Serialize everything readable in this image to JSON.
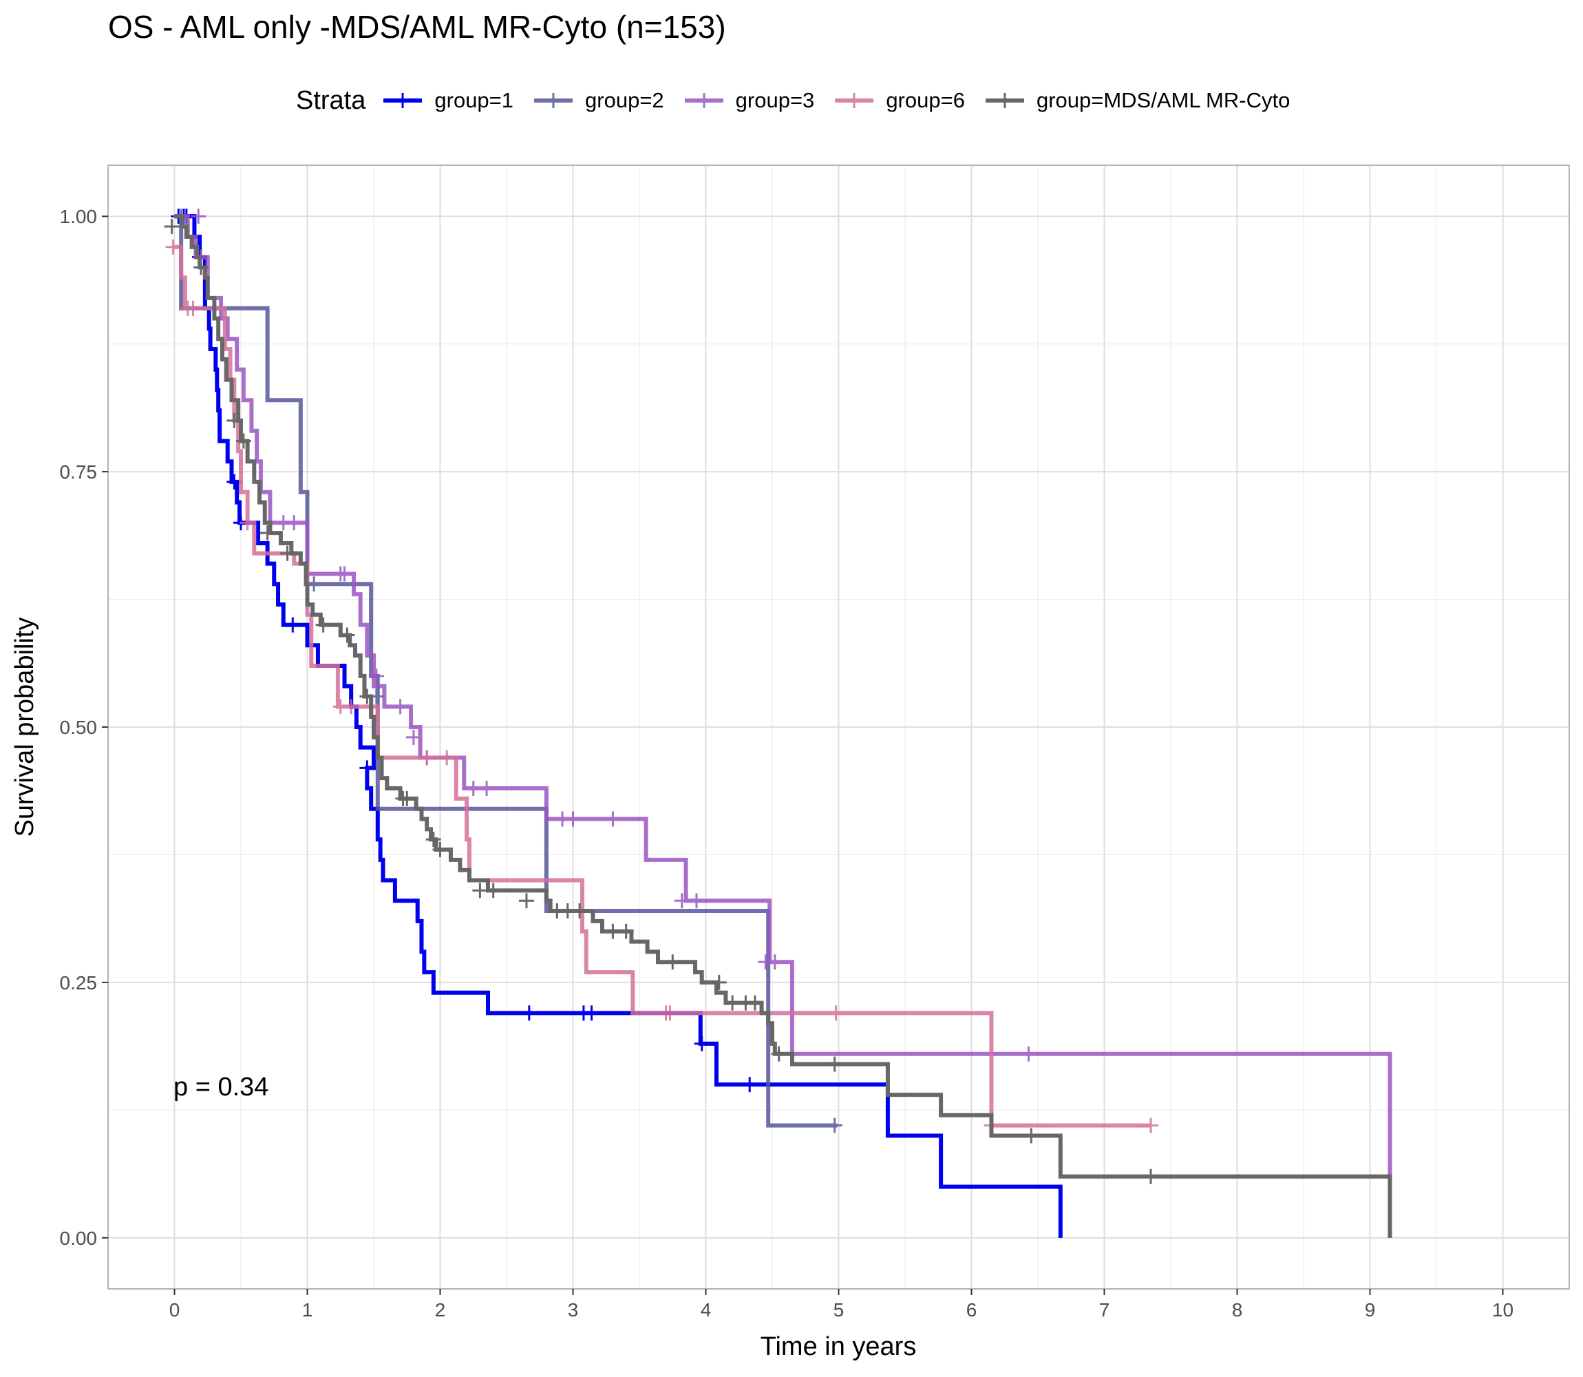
{
  "title": "OS - AML only -MDS/AML MR-Cyto (n=153)",
  "legend_title": "Strata",
  "pvalue": "p = 0.34",
  "chart_data": {
    "type": "line",
    "title": "OS - AML only -MDS/AML MR-Cyto (n=153)",
    "xlabel": "Time in years",
    "ylabel": "Survival probability",
    "xlim": [
      -0.5,
      10.5
    ],
    "ylim": [
      -0.05,
      1.05
    ],
    "xticks": [
      0,
      1,
      2,
      3,
      4,
      5,
      6,
      7,
      8,
      9,
      10
    ],
    "xtick_labels": [
      "0",
      "1",
      "2",
      "3",
      "4",
      "5",
      "6",
      "7",
      "8",
      "9",
      "10"
    ],
    "yticks": [
      0,
      0.25,
      0.5,
      0.75,
      1
    ],
    "ytick_labels": [
      "0.00",
      "0.25",
      "0.50",
      "0.75",
      "1.00"
    ],
    "grid": true,
    "legend_position": "top",
    "series": [
      {
        "name": "group=1",
        "color": "#0000ee",
        "opacity": 1.0,
        "steps": [
          [
            0,
            1.0
          ],
          [
            0.15,
            0.98
          ],
          [
            0.19,
            0.96
          ],
          [
            0.23,
            0.91
          ],
          [
            0.26,
            0.89
          ],
          [
            0.27,
            0.87
          ],
          [
            0.31,
            0.85
          ],
          [
            0.32,
            0.83
          ],
          [
            0.33,
            0.81
          ],
          [
            0.34,
            0.78
          ],
          [
            0.4,
            0.76
          ],
          [
            0.43,
            0.74
          ],
          [
            0.47,
            0.72
          ],
          [
            0.49,
            0.7
          ],
          [
            0.63,
            0.68
          ],
          [
            0.7,
            0.66
          ],
          [
            0.75,
            0.64
          ],
          [
            0.78,
            0.62
          ],
          [
            0.82,
            0.6
          ],
          [
            1.0,
            0.58
          ],
          [
            1.08,
            0.56
          ],
          [
            1.28,
            0.54
          ],
          [
            1.33,
            0.52
          ],
          [
            1.37,
            0.5
          ],
          [
            1.4,
            0.48
          ],
          [
            1.5,
            0.46
          ],
          [
            1.45,
            0.44
          ],
          [
            1.48,
            0.42
          ],
          [
            1.53,
            0.39
          ],
          [
            1.55,
            0.37
          ],
          [
            1.57,
            0.35
          ],
          [
            1.66,
            0.33
          ],
          [
            1.83,
            0.31
          ],
          [
            1.86,
            0.28
          ],
          [
            1.88,
            0.26
          ],
          [
            1.95,
            0.24
          ],
          [
            2.36,
            0.22
          ],
          [
            3.96,
            0.19
          ],
          [
            4.08,
            0.15
          ],
          [
            5.37,
            0.1
          ],
          [
            5.77,
            0.05
          ],
          [
            6.67,
            0.0
          ]
        ],
        "end": 6.67,
        "censors": [
          [
            0.03,
            1.0
          ],
          [
            0.07,
            1.0
          ],
          [
            0.09,
            1.0
          ],
          [
            0.19,
            0.96
          ],
          [
            0.45,
            0.74
          ],
          [
            0.5,
            0.7
          ],
          [
            0.89,
            0.6
          ],
          [
            1.45,
            0.46
          ],
          [
            2.67,
            0.22
          ],
          [
            3.08,
            0.22
          ],
          [
            3.14,
            0.22
          ],
          [
            3.97,
            0.19
          ],
          [
            4.33,
            0.15
          ]
        ]
      },
      {
        "name": "group=2",
        "color": "#56569a",
        "opacity": 0.85,
        "steps": [
          [
            0,
            1.0
          ],
          [
            0.05,
            0.91
          ],
          [
            0.7,
            0.82
          ],
          [
            0.95,
            0.73
          ],
          [
            1.0,
            0.64
          ],
          [
            1.48,
            0.55
          ],
          [
            1.53,
            0.42
          ],
          [
            2.8,
            0.32
          ],
          [
            4.47,
            0.11
          ]
        ],
        "end": 4.99,
        "censors": [
          [
            0.05,
            1.0
          ],
          [
            1.05,
            0.64
          ],
          [
            1.52,
            0.53
          ],
          [
            4.97,
            0.11
          ]
        ]
      },
      {
        "name": "group=3",
        "color": "#9b55c2",
        "opacity": 0.85,
        "steps": [
          [
            0,
            1.0
          ],
          [
            0.1,
            0.98
          ],
          [
            0.16,
            0.96
          ],
          [
            0.25,
            0.92
          ],
          [
            0.35,
            0.9
          ],
          [
            0.4,
            0.88
          ],
          [
            0.47,
            0.85
          ],
          [
            0.52,
            0.82
          ],
          [
            0.58,
            0.79
          ],
          [
            0.62,
            0.76
          ],
          [
            0.65,
            0.73
          ],
          [
            0.72,
            0.7
          ],
          [
            1.0,
            0.65
          ],
          [
            1.35,
            0.63
          ],
          [
            1.4,
            0.6
          ],
          [
            1.45,
            0.57
          ],
          [
            1.5,
            0.54
          ],
          [
            1.58,
            0.52
          ],
          [
            1.78,
            0.5
          ],
          [
            1.85,
            0.47
          ],
          [
            2.18,
            0.44
          ],
          [
            2.8,
            0.41
          ],
          [
            3.55,
            0.37
          ],
          [
            3.85,
            0.33
          ],
          [
            4.48,
            0.27
          ],
          [
            4.65,
            0.18
          ],
          [
            9.15,
            0.0
          ]
        ],
        "end": 9.15,
        "censors": [
          [
            0.18,
            1.0
          ],
          [
            0.2,
            0.96
          ],
          [
            0.82,
            0.7
          ],
          [
            0.9,
            0.7
          ],
          [
            1.25,
            0.65
          ],
          [
            1.28,
            0.65
          ],
          [
            1.52,
            0.55
          ],
          [
            1.7,
            0.52
          ],
          [
            1.8,
            0.49
          ],
          [
            1.9,
            0.47
          ],
          [
            2.25,
            0.44
          ],
          [
            2.35,
            0.44
          ],
          [
            2.92,
            0.41
          ],
          [
            3.0,
            0.41
          ],
          [
            3.3,
            0.41
          ],
          [
            3.82,
            0.33
          ],
          [
            3.93,
            0.33
          ],
          [
            4.45,
            0.27
          ],
          [
            4.52,
            0.27
          ],
          [
            6.43,
            0.18
          ]
        ]
      },
      {
        "name": "group=6",
        "color": "#d4709a",
        "opacity": 0.85,
        "steps": [
          [
            0,
            0.97
          ],
          [
            0.05,
            0.94
          ],
          [
            0.08,
            0.91
          ],
          [
            0.38,
            0.87
          ],
          [
            0.42,
            0.84
          ],
          [
            0.45,
            0.8
          ],
          [
            0.48,
            0.77
          ],
          [
            0.5,
            0.73
          ],
          [
            0.55,
            0.7
          ],
          [
            0.6,
            0.67
          ],
          [
            0.9,
            0.66
          ],
          [
            1.0,
            0.61
          ],
          [
            1.03,
            0.56
          ],
          [
            1.23,
            0.52
          ],
          [
            1.53,
            0.47
          ],
          [
            2.12,
            0.43
          ],
          [
            2.2,
            0.39
          ],
          [
            2.22,
            0.35
          ],
          [
            3.07,
            0.3
          ],
          [
            3.1,
            0.26
          ],
          [
            3.45,
            0.22
          ],
          [
            6.15,
            0.11
          ]
        ],
        "end": 7.35,
        "censors": [
          [
            -0.01,
            0.97
          ],
          [
            0.1,
            0.91
          ],
          [
            0.14,
            0.91
          ],
          [
            0.55,
            0.7
          ],
          [
            1.25,
            0.52
          ],
          [
            1.33,
            0.52
          ],
          [
            1.9,
            0.47
          ],
          [
            2.05,
            0.47
          ],
          [
            3.7,
            0.22
          ],
          [
            3.73,
            0.22
          ],
          [
            4.98,
            0.22
          ],
          [
            6.15,
            0.11
          ],
          [
            7.35,
            0.11
          ]
        ]
      },
      {
        "name": "group=MDS/AML MR-Cyto",
        "color": "#676767",
        "opacity": 1.0,
        "steps": [
          [
            0,
            1.0
          ],
          [
            0.06,
            0.99
          ],
          [
            0.09,
            0.98
          ],
          [
            0.13,
            0.97
          ],
          [
            0.17,
            0.96
          ],
          [
            0.19,
            0.95
          ],
          [
            0.23,
            0.94
          ],
          [
            0.25,
            0.92
          ],
          [
            0.3,
            0.9
          ],
          [
            0.33,
            0.88
          ],
          [
            0.36,
            0.86
          ],
          [
            0.39,
            0.84
          ],
          [
            0.43,
            0.82
          ],
          [
            0.48,
            0.8
          ],
          [
            0.5,
            0.78
          ],
          [
            0.55,
            0.76
          ],
          [
            0.6,
            0.74
          ],
          [
            0.64,
            0.72
          ],
          [
            0.68,
            0.7
          ],
          [
            0.72,
            0.69
          ],
          [
            0.8,
            0.68
          ],
          [
            0.88,
            0.67
          ],
          [
            0.95,
            0.66
          ],
          [
            0.99,
            0.64
          ],
          [
            1.0,
            0.62
          ],
          [
            1.04,
            0.61
          ],
          [
            1.1,
            0.6
          ],
          [
            1.25,
            0.59
          ],
          [
            1.32,
            0.58
          ],
          [
            1.36,
            0.57
          ],
          [
            1.4,
            0.55
          ],
          [
            1.43,
            0.53
          ],
          [
            1.48,
            0.51
          ],
          [
            1.5,
            0.49
          ],
          [
            1.53,
            0.47
          ],
          [
            1.56,
            0.45
          ],
          [
            1.6,
            0.44
          ],
          [
            1.7,
            0.43
          ],
          [
            1.82,
            0.42
          ],
          [
            1.86,
            0.41
          ],
          [
            1.9,
            0.4
          ],
          [
            1.93,
            0.39
          ],
          [
            1.97,
            0.38
          ],
          [
            2.08,
            0.37
          ],
          [
            2.15,
            0.36
          ],
          [
            2.22,
            0.35
          ],
          [
            2.36,
            0.34
          ],
          [
            2.8,
            0.33
          ],
          [
            2.83,
            0.32
          ],
          [
            3.15,
            0.31
          ],
          [
            3.22,
            0.3
          ],
          [
            3.44,
            0.29
          ],
          [
            3.56,
            0.28
          ],
          [
            3.64,
            0.27
          ],
          [
            3.92,
            0.26
          ],
          [
            3.97,
            0.25
          ],
          [
            4.08,
            0.24
          ],
          [
            4.15,
            0.23
          ],
          [
            4.42,
            0.22
          ],
          [
            4.47,
            0.21
          ],
          [
            4.5,
            0.19
          ],
          [
            4.52,
            0.18
          ],
          [
            4.65,
            0.17
          ],
          [
            5.37,
            0.14
          ],
          [
            5.77,
            0.12
          ],
          [
            6.15,
            0.1
          ],
          [
            6.67,
            0.06
          ],
          [
            9.15,
            0.0
          ]
        ],
        "end": 9.15,
        "censors": [
          [
            -0.02,
            0.99
          ],
          [
            0.2,
            0.95
          ],
          [
            0.45,
            0.8
          ],
          [
            0.52,
            0.78
          ],
          [
            0.7,
            0.69
          ],
          [
            0.85,
            0.67
          ],
          [
            1.12,
            0.6
          ],
          [
            1.3,
            0.59
          ],
          [
            1.45,
            0.53
          ],
          [
            1.72,
            0.43
          ],
          [
            1.75,
            0.43
          ],
          [
            1.95,
            0.39
          ],
          [
            2.0,
            0.38
          ],
          [
            2.3,
            0.34
          ],
          [
            2.4,
            0.34
          ],
          [
            2.65,
            0.33
          ],
          [
            2.88,
            0.32
          ],
          [
            2.96,
            0.32
          ],
          [
            3.05,
            0.32
          ],
          [
            3.3,
            0.3
          ],
          [
            3.4,
            0.3
          ],
          [
            3.75,
            0.27
          ],
          [
            4.1,
            0.25
          ],
          [
            4.2,
            0.23
          ],
          [
            4.3,
            0.23
          ],
          [
            4.37,
            0.23
          ],
          [
            4.55,
            0.18
          ],
          [
            4.97,
            0.17
          ],
          [
            6.45,
            0.1
          ],
          [
            7.35,
            0.06
          ]
        ]
      }
    ]
  }
}
